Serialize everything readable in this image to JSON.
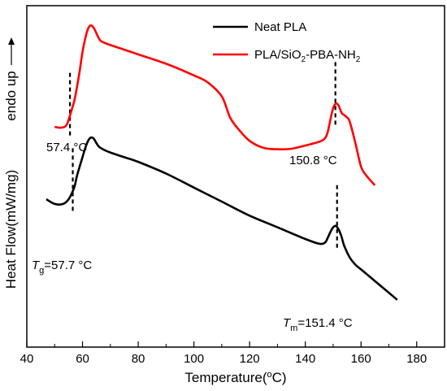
{
  "chart_data": {
    "type": "line",
    "title": "",
    "xlabel": "Temperature(°C)",
    "ylabel": "Heat Flow(mW/mg)",
    "y_direction_label": "endo up",
    "xlim": [
      40,
      190
    ],
    "x_ticks": [
      40,
      60,
      80,
      100,
      120,
      140,
      160,
      180
    ],
    "y_tick_labels_shown": false,
    "grid": false,
    "legend_position": "top-right",
    "series": [
      {
        "name": "Neat PLA",
        "color": "#000000",
        "x": [
          47,
          50,
          53,
          55,
          57,
          58,
          60,
          61,
          62,
          63,
          64,
          65,
          66,
          68,
          70,
          75,
          80,
          90,
          100,
          110,
          120,
          130,
          140,
          145,
          147,
          148,
          149,
          150,
          151,
          152,
          153,
          154,
          156,
          158,
          160,
          162,
          165,
          168,
          170,
          173
        ],
        "y": [
          -0.35,
          -0.45,
          -0.45,
          -0.35,
          -0.1,
          0.15,
          0.55,
          0.75,
          0.9,
          0.97,
          0.95,
          0.85,
          0.77,
          0.7,
          0.65,
          0.55,
          0.45,
          0.2,
          -0.1,
          -0.4,
          -0.7,
          -0.95,
          -1.2,
          -1.3,
          -1.28,
          -1.18,
          -1.05,
          -0.95,
          -0.92,
          -1.0,
          -1.15,
          -1.35,
          -1.6,
          -1.75,
          -1.85,
          -1.95,
          -2.1,
          -2.25,
          -2.35,
          -2.5
        ]
      },
      {
        "name": "PLA/SiO2-PBA-NH2",
        "color": "#ff0000",
        "x": [
          50,
          52,
          54,
          55,
          57,
          58,
          59,
          60,
          61,
          62,
          63,
          64,
          65,
          66,
          67,
          70,
          75,
          80,
          90,
          100,
          105,
          110,
          113,
          116,
          120,
          125,
          130,
          135,
          140,
          145,
          147,
          148,
          149,
          150,
          151,
          152,
          153,
          154,
          155,
          156,
          158,
          160,
          162,
          165
        ],
        "y": [
          1.2,
          1.18,
          1.22,
          1.35,
          1.75,
          2.05,
          2.4,
          2.8,
          3.1,
          3.3,
          3.37,
          3.32,
          3.2,
          3.08,
          3.02,
          2.95,
          2.85,
          2.75,
          2.55,
          2.3,
          2.15,
          1.85,
          1.4,
          1.15,
          0.9,
          0.75,
          0.72,
          0.73,
          0.8,
          0.88,
          0.95,
          1.08,
          1.35,
          1.6,
          1.7,
          1.65,
          1.5,
          1.45,
          1.4,
          1.3,
          0.85,
          0.35,
          0.15,
          -0.05
        ]
      }
    ],
    "annotations": [
      {
        "id": "red_tg",
        "text": "57.4 °C"
      },
      {
        "id": "red_tm",
        "text": "150.8 °C"
      },
      {
        "id": "black_tg",
        "symbol": "T",
        "subscript": "g",
        "text": "=57.7 °C"
      },
      {
        "id": "black_tm",
        "symbol": "T",
        "subscript": "m",
        "text": "=151.4 °C"
      }
    ],
    "marker_lines": [
      {
        "series": "PLA/SiO2-PBA-NH2",
        "x": 55.5
      },
      {
        "series": "PLA/SiO2-PBA-NH2",
        "x": 150.8
      },
      {
        "series": "Neat PLA",
        "x": 56.5
      },
      {
        "series": "Neat PLA",
        "x": 151.4
      }
    ]
  }
}
